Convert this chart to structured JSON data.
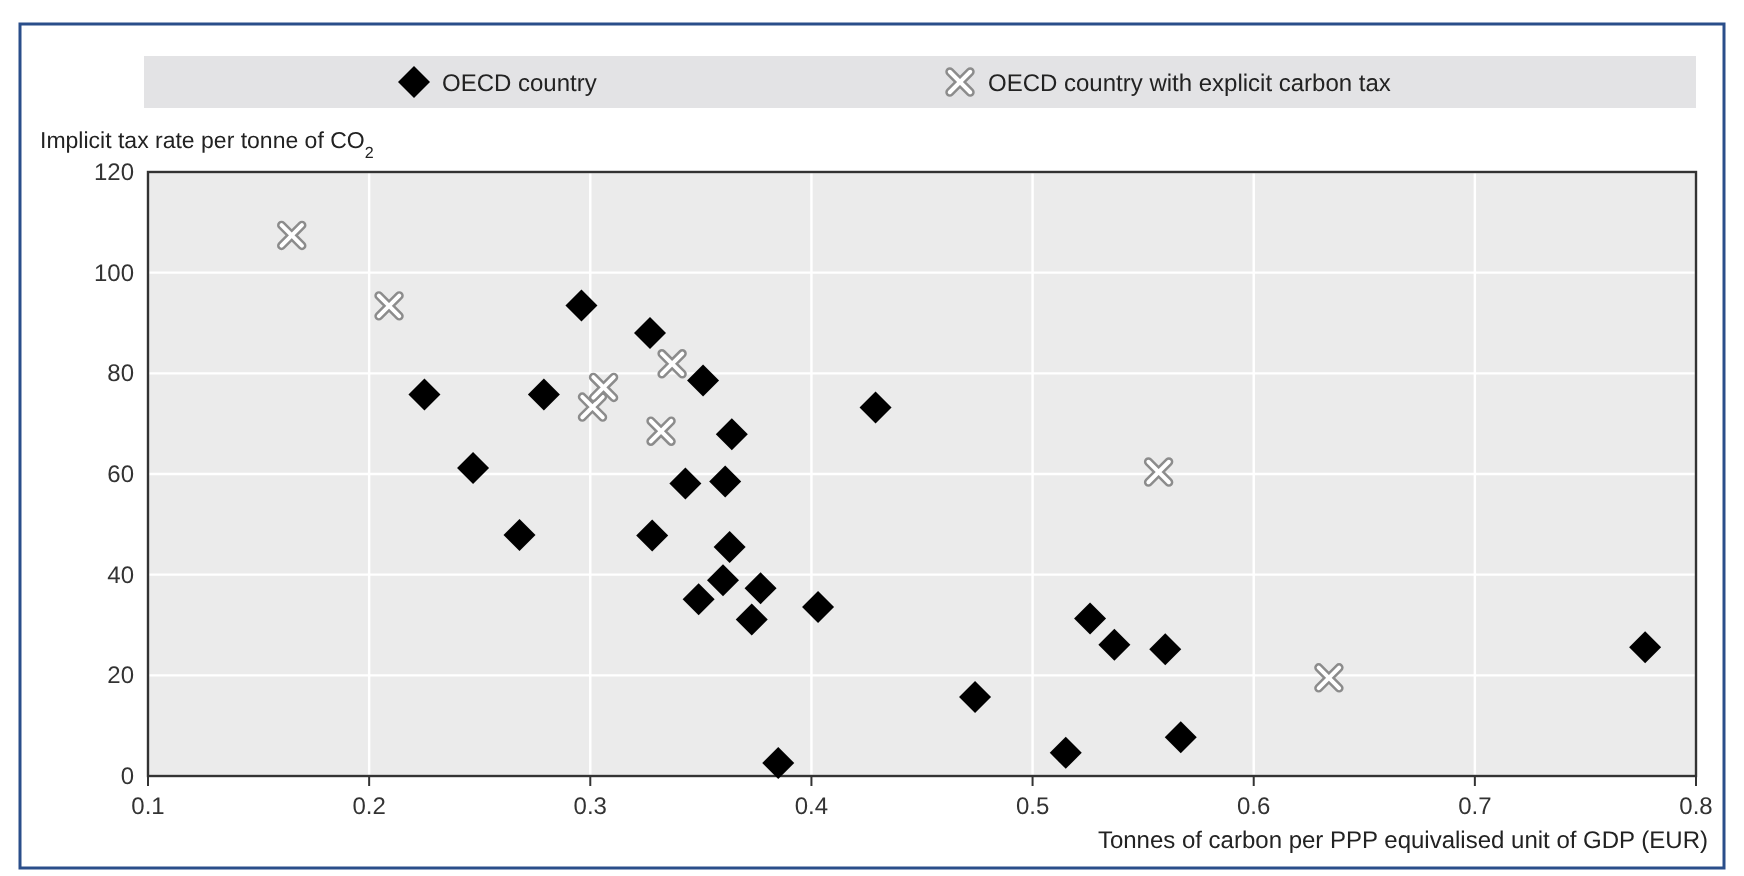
{
  "chart_data": {
    "type": "scatter",
    "ylabel": "Implicit tax rate per tonne of CO$_{2}$",
    "xlabel": "Tonnes of carbon per PPP equivalised unit of GDP (EUR)",
    "xlim": [
      0.1,
      0.8
    ],
    "xticks": [
      0.1,
      0.2,
      0.3,
      0.4,
      0.5,
      0.6,
      0.7,
      0.8
    ],
    "ylim": [
      0,
      120
    ],
    "yticks": [
      0,
      20,
      40,
      60,
      80,
      100,
      120
    ],
    "grid": true,
    "legend": "top",
    "series": [
      {
        "name": "OECD country",
        "color": "#000000",
        "marker": "diamond",
        "x": [
          0.296,
          0.225,
          0.279,
          0.247,
          0.268,
          0.327,
          0.351,
          0.364,
          0.343,
          0.361,
          0.328,
          0.363,
          0.36,
          0.349,
          0.377,
          0.373,
          0.385,
          0.403,
          0.429,
          0.474,
          0.526,
          0.537,
          0.56,
          0.515,
          0.567,
          0.777
        ],
        "values": [
          93.5,
          75.8,
          75.8,
          61.2,
          47.9,
          88.0,
          78.6,
          67.9,
          58.1,
          58.5,
          47.8,
          45.5,
          38.9,
          35.1,
          37.3,
          31.1,
          2.6,
          33.6,
          73.2,
          15.7,
          31.3,
          26.1,
          25.2,
          4.6,
          7.7,
          25.6
        ]
      },
      {
        "name": "OECD country with explicit carbon tax",
        "color": "#8c8c8c",
        "marker": "cross",
        "x": [
          0.165,
          0.209,
          0.301,
          0.306,
          0.337,
          0.332,
          0.557,
          0.634
        ],
        "values": [
          107.4,
          93.4,
          73.3,
          77.2,
          81.9,
          68.5,
          60.4,
          19.5
        ]
      }
    ]
  }
}
